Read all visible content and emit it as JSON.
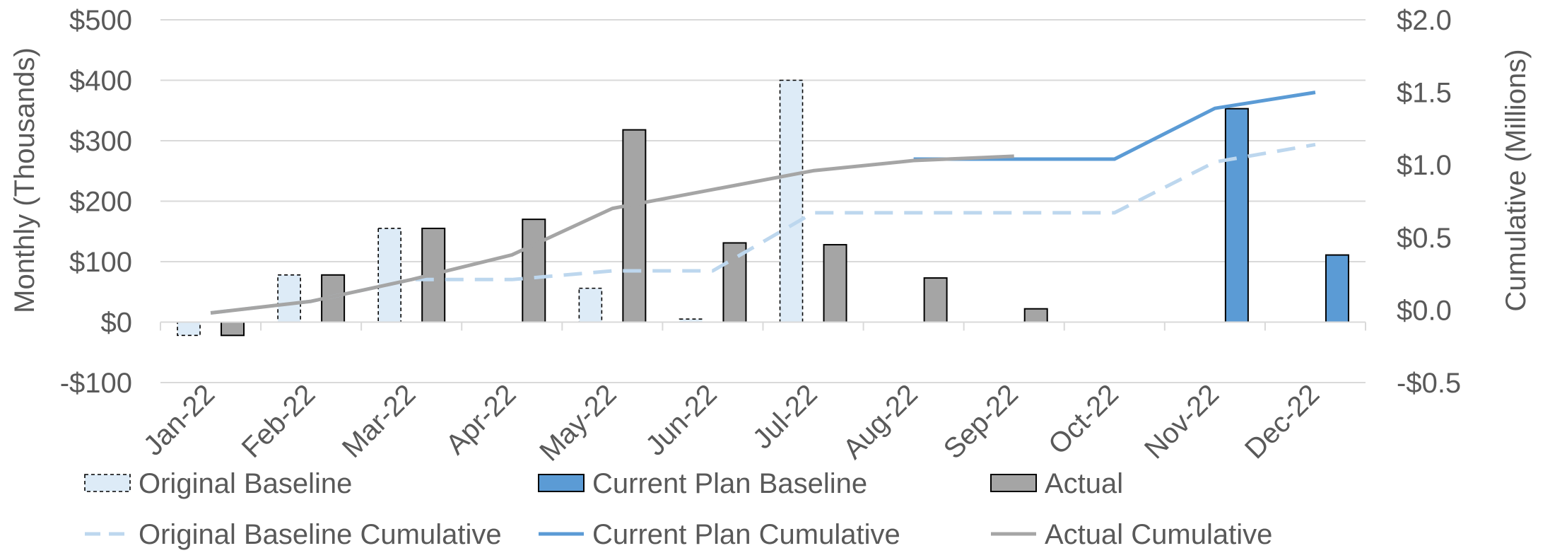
{
  "chart_data": {
    "type": "bar",
    "title": "",
    "xlabel": "",
    "ylabel": "Monthly (Thousands)",
    "y2label": "Cumulative (Millions)",
    "categories": [
      "Jan-22",
      "Feb-22",
      "Mar-22",
      "Apr-22",
      "May-22",
      "Jun-22",
      "Jul-22",
      "Aug-22",
      "Sep-22",
      "Oct-22",
      "Nov-22",
      "Dec-22"
    ],
    "ylim": [
      -100,
      500
    ],
    "yticks": [
      -100,
      0,
      100,
      200,
      300,
      400,
      500
    ],
    "ytick_labels": [
      "-$100",
      "$0",
      "$100",
      "$200",
      "$300",
      "$400",
      "$500"
    ],
    "y2lim": [
      -0.5,
      2.0
    ],
    "y2ticks": [
      -0.5,
      0.0,
      0.5,
      1.0,
      1.5,
      2.0
    ],
    "y2tick_labels": [
      "-$0.5",
      "$0.0",
      "$0.5",
      "$1.0",
      "$1.5",
      "$2.0"
    ],
    "grid": true,
    "legend_position": "bottom",
    "bar_series": [
      {
        "name": "Original Baseline",
        "color": "#DDEBF7",
        "style": "dashed-border",
        "values": [
          -22,
          78,
          155,
          0,
          56,
          5,
          400,
          0,
          0,
          0,
          0,
          0
        ]
      },
      {
        "name": "Current Plan Baseline",
        "color": "#5B9BD5",
        "style": "solid",
        "values": [
          0,
          0,
          0,
          0,
          0,
          0,
          0,
          0,
          2,
          0,
          353,
          111
        ]
      },
      {
        "name": "Actual",
        "color": "#A5A5A5",
        "style": "solid",
        "values": [
          -22,
          78,
          155,
          170,
          318,
          131,
          128,
          73,
          22,
          null,
          null,
          null
        ]
      }
    ],
    "line_series": [
      {
        "name": "Original Baseline Cumulative",
        "color": "#BDD7EE",
        "style": "dashed",
        "values": [
          -0.02,
          0.06,
          0.21,
          0.21,
          0.27,
          0.27,
          0.67,
          0.67,
          0.67,
          0.67,
          1.02,
          1.14
        ]
      },
      {
        "name": "Current Plan Cumulative",
        "color": "#5B9BD5",
        "style": "solid",
        "values": [
          null,
          null,
          null,
          null,
          null,
          null,
          null,
          1.04,
          1.04,
          1.04,
          1.39,
          1.5
        ]
      },
      {
        "name": "Actual Cumulative",
        "color": "#A5A5A5",
        "style": "solid",
        "values": [
          -0.02,
          0.06,
          0.21,
          0.38,
          0.7,
          0.83,
          0.96,
          1.03,
          1.06,
          null,
          null,
          null
        ]
      }
    ]
  }
}
